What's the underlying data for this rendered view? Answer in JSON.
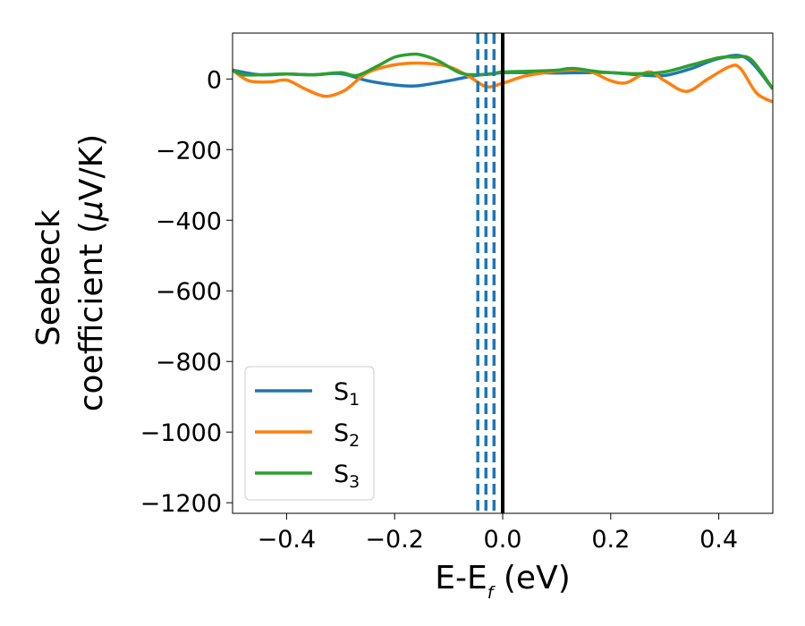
{
  "chart_data": {
    "type": "line",
    "xlabel": {
      "main": "E-E",
      "sub": "f",
      "unit": " (eV)"
    },
    "ylabel": {
      "line1": "Seebeck",
      "line2_pre": "coefficient  (",
      "mu": "μ",
      "line2_post": "V/K)"
    },
    "xlim": [
      -0.5,
      0.5
    ],
    "ylim": [
      -1230,
      130
    ],
    "xticks": [
      -0.4,
      -0.2,
      0.0,
      0.2,
      0.4
    ],
    "xtick_labels": [
      "−0.4",
      "−0.2",
      "0.0",
      "0.2",
      "0.4"
    ],
    "yticks": [
      0,
      -200,
      -400,
      -600,
      -800,
      -1000,
      -1200
    ],
    "ytick_labels": [
      "0",
      "−200",
      "−400",
      "−600",
      "−800",
      "−1000",
      "−1200"
    ],
    "grid": false,
    "legend_position": "lower-left",
    "vlines": [
      {
        "x": -0.046,
        "style": "dashed",
        "color": "#1f77b4"
      },
      {
        "x": -0.031,
        "style": "dashed",
        "color": "#1f77b4"
      },
      {
        "x": -0.016,
        "style": "dashed",
        "color": "#1f77b4"
      },
      {
        "x": 0.0,
        "style": "solid",
        "color": "#000000"
      }
    ],
    "series": [
      {
        "name": "S",
        "subscript": "1",
        "color": "#1f77b4",
        "x": [
          -0.5,
          -0.45,
          -0.4,
          -0.35,
          -0.3,
          -0.25,
          -0.2,
          -0.17,
          -0.15,
          -0.1,
          -0.05,
          -0.02,
          0.0,
          0.05,
          0.1,
          0.15,
          0.2,
          0.25,
          0.3,
          0.35,
          0.4,
          0.45,
          0.5
        ],
        "y": [
          25,
          12,
          14,
          12,
          15,
          -5,
          -17,
          -20,
          -18,
          -5,
          10,
          14,
          18,
          18,
          17,
          18,
          18,
          12,
          10,
          30,
          58,
          60,
          -28
        ]
      },
      {
        "name": "S",
        "subscript": "2",
        "color": "#ff7f0e",
        "x": [
          -0.5,
          -0.47,
          -0.43,
          -0.4,
          -0.37,
          -0.34,
          -0.32,
          -0.29,
          -0.25,
          -0.2,
          -0.15,
          -0.1,
          -0.06,
          -0.03,
          0.0,
          0.04,
          0.08,
          0.12,
          0.16,
          0.2,
          0.23,
          0.27,
          0.3,
          0.34,
          0.38,
          0.42,
          0.44,
          0.47,
          0.5
        ],
        "y": [
          25,
          -5,
          -8,
          -3,
          -25,
          -45,
          -48,
          -30,
          18,
          40,
          45,
          35,
          5,
          -22,
          -12,
          8,
          18,
          25,
          22,
          -5,
          -10,
          20,
          -5,
          -35,
          0,
          35,
          30,
          -40,
          -65
        ]
      },
      {
        "name": "S",
        "subscript": "3",
        "color": "#2ca02c",
        "x": [
          -0.5,
          -0.48,
          -0.45,
          -0.4,
          -0.35,
          -0.3,
          -0.27,
          -0.23,
          -0.2,
          -0.17,
          -0.15,
          -0.12,
          -0.08,
          -0.05,
          -0.02,
          0.0,
          0.05,
          0.1,
          0.13,
          0.17,
          0.2,
          0.25,
          0.3,
          0.35,
          0.4,
          0.43,
          0.46,
          0.5
        ],
        "y": [
          25,
          12,
          12,
          14,
          12,
          18,
          10,
          38,
          62,
          70,
          68,
          52,
          18,
          12,
          15,
          20,
          22,
          25,
          30,
          22,
          18,
          15,
          20,
          40,
          60,
          62,
          55,
          -28
        ]
      }
    ]
  }
}
